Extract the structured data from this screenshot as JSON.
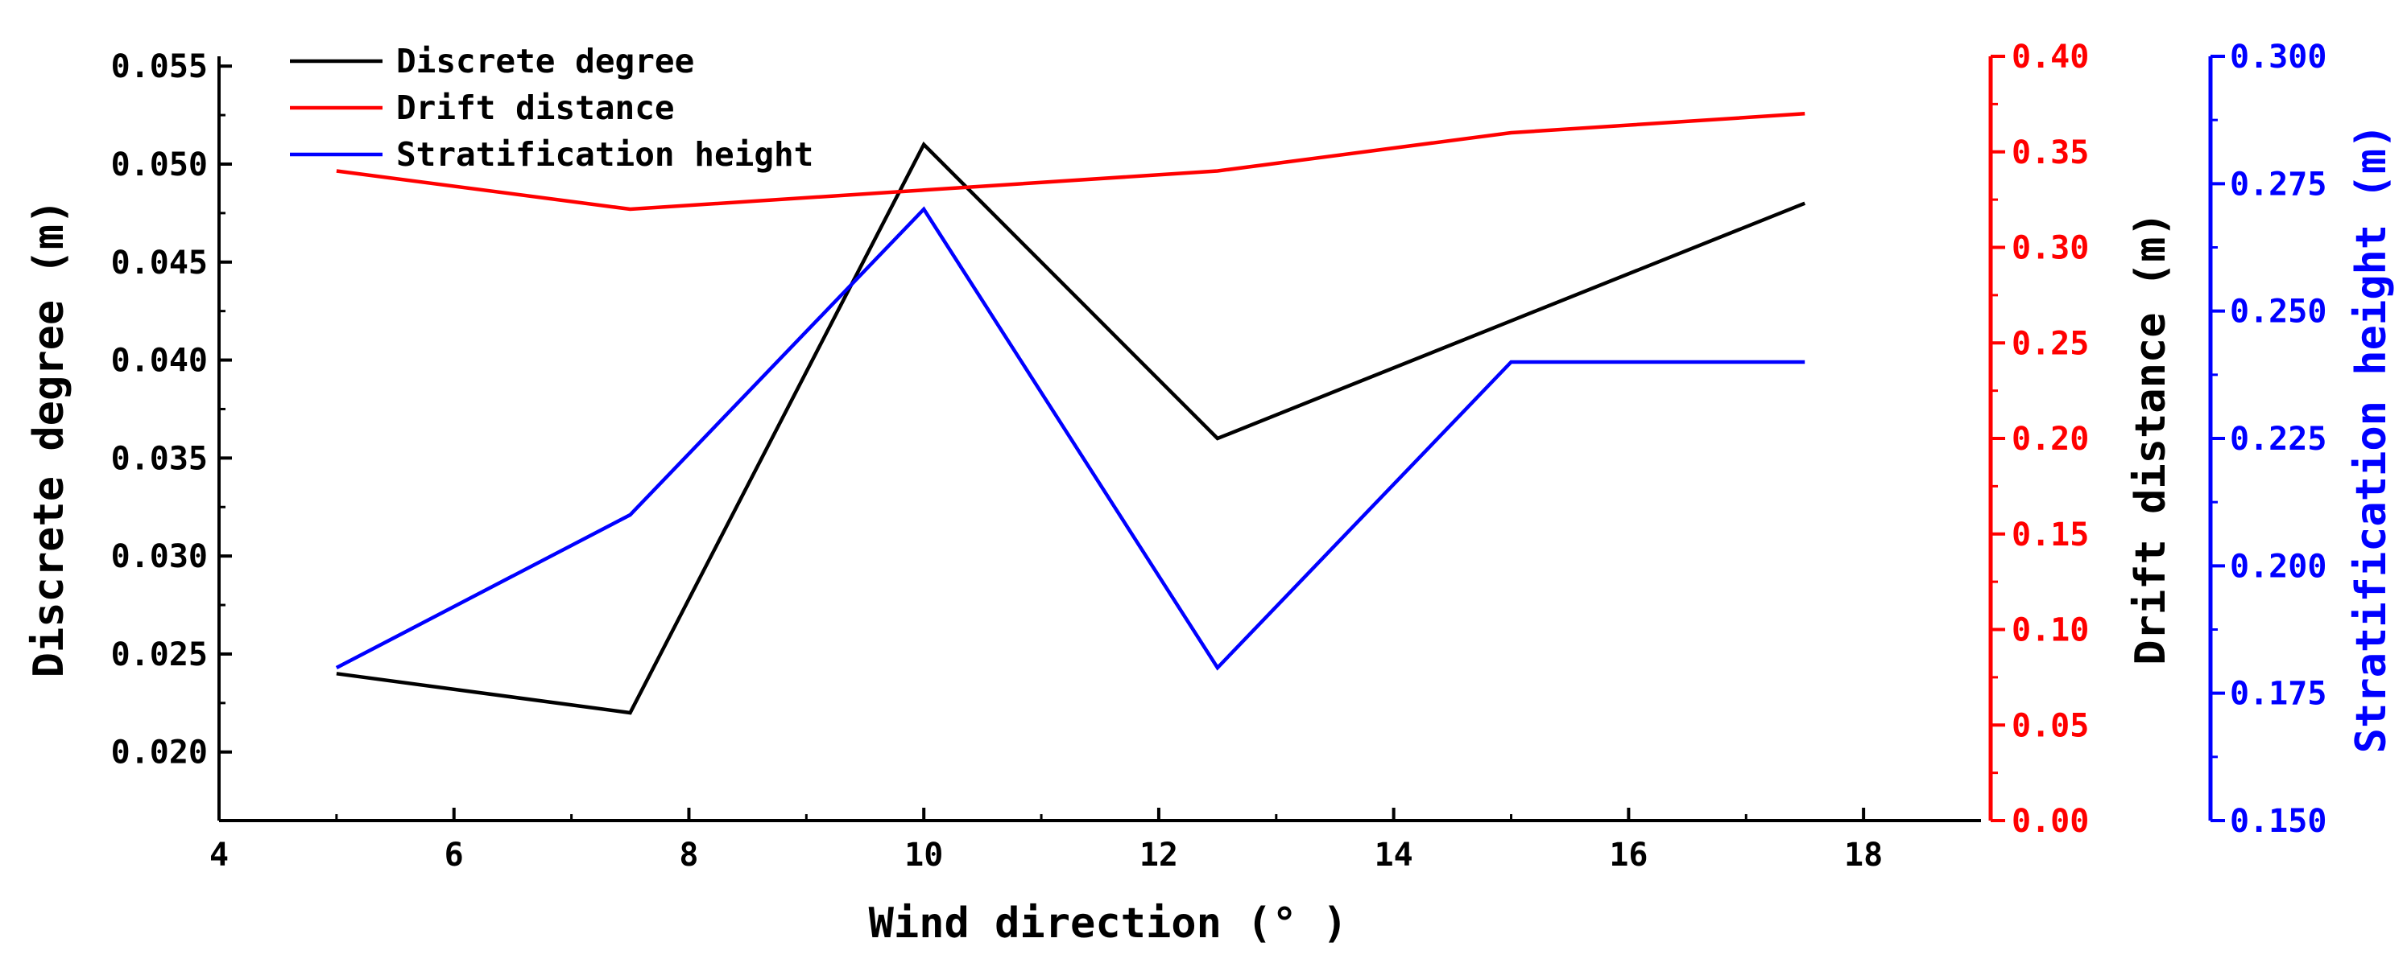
{
  "chart_data": {
    "type": "line",
    "xlabel": "Wind direction (° )",
    "x": [
      5,
      7.5,
      10,
      12.5,
      15,
      17.5
    ],
    "xlim": [
      4,
      19
    ],
    "x_ticks": [
      4,
      6,
      8,
      10,
      12,
      14,
      16,
      18
    ],
    "x_tick_labels": [
      "4",
      "6",
      "8",
      "10",
      "12",
      "14",
      "16",
      "18"
    ],
    "axes": {
      "left": {
        "label": "Discrete degree (m)",
        "color": "#000000",
        "ylim": [
          0.0165,
          0.0555
        ],
        "ticks": [
          0.02,
          0.025,
          0.03,
          0.035,
          0.04,
          0.045,
          0.05,
          0.055
        ],
        "tick_labels": [
          "0.020",
          "0.025",
          "0.030",
          "0.035",
          "0.040",
          "0.045",
          "0.050",
          "0.055"
        ]
      },
      "right1": {
        "label": "Drift distance (m)",
        "label_color": "#000000",
        "color": "#ff0000",
        "ylim": [
          0.0,
          0.4
        ],
        "ticks": [
          0.0,
          0.05,
          0.1,
          0.15,
          0.2,
          0.25,
          0.3,
          0.35,
          0.4
        ],
        "tick_labels": [
          "0.00",
          "0.05",
          "0.10",
          "0.15",
          "0.20",
          "0.25",
          "0.30",
          "0.35",
          "0.40"
        ]
      },
      "right2": {
        "label": "Stratification height (m)",
        "color": "#0000ff",
        "ylim": [
          0.15,
          0.3
        ],
        "ticks": [
          0.15,
          0.175,
          0.2,
          0.225,
          0.25,
          0.275,
          0.3
        ],
        "tick_labels": [
          "0.150",
          "0.175",
          "0.200",
          "0.225",
          "0.250",
          "0.275",
          "0.300"
        ]
      }
    },
    "series": [
      {
        "name": "Discrete degree",
        "axis": "left",
        "color": "#000000",
        "values": [
          0.024,
          0.022,
          0.051,
          0.036,
          0.042,
          0.048
        ]
      },
      {
        "name": "Drift distance",
        "axis": "right1",
        "color": "#ff0000",
        "values": [
          0.34,
          0.32,
          0.33,
          0.34,
          0.36,
          0.37
        ]
      },
      {
        "name": "Stratification height",
        "axis": "right2",
        "color": "#0000ff",
        "values": [
          0.18,
          0.21,
          0.27,
          0.18,
          0.24,
          0.24
        ]
      }
    ],
    "legend": {
      "position": "top-left"
    },
    "grid": false
  }
}
